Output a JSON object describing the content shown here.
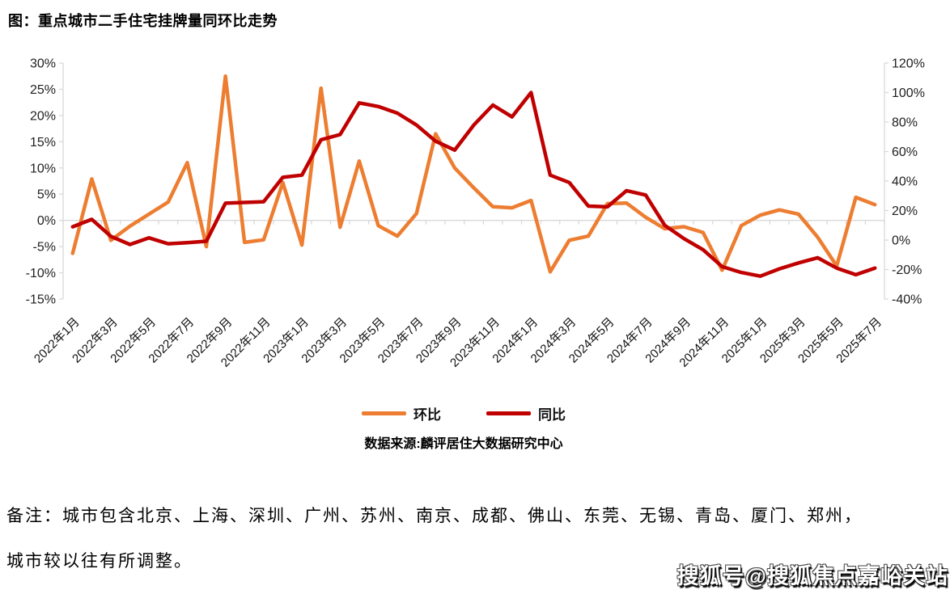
{
  "title": "图：重点城市二手住宅挂牌量同环比走势",
  "chart_data": {
    "type": "line",
    "categories": [
      "2022年1月",
      "2022年2月",
      "2022年3月",
      "2022年4月",
      "2022年5月",
      "2022年6月",
      "2022年7月",
      "2022年8月",
      "2022年9月",
      "2022年10月",
      "2022年11月",
      "2022年12月",
      "2023年1月",
      "2023年2月",
      "2023年3月",
      "2023年4月",
      "2023年5月",
      "2023年6月",
      "2023年7月",
      "2023年8月",
      "2023年9月",
      "2023年10月",
      "2023年11月",
      "2023年12月",
      "2024年1月",
      "2024年2月",
      "2024年3月",
      "2024年4月",
      "2024年5月",
      "2024年6月",
      "2024年7月",
      "2024年8月",
      "2024年9月",
      "2024年10月",
      "2024年11月",
      "2024年12月",
      "2025年1月",
      "2025年2月",
      "2025年3月",
      "2025年4月",
      "2025年5月",
      "2025年6月",
      "2025年7月"
    ],
    "x_label_interval": 2,
    "series": [
      {
        "name": "环比",
        "axis": "left",
        "color": "#ED7D31",
        "values": [
          -6.3,
          7.9,
          -3.8,
          -1.1,
          1.2,
          3.5,
          11.0,
          -5.0,
          27.5,
          -4.2,
          -3.7,
          7.2,
          -4.7,
          25.2,
          -1.3,
          11.3,
          -1.0,
          -3.0,
          1.3,
          16.5,
          10.0,
          6.2,
          2.6,
          2.4,
          3.8,
          -9.8,
          -3.8,
          -3.0,
          3.2,
          3.3,
          0.6,
          -1.6,
          -1.2,
          -2.3,
          -9.5,
          -1.0,
          1.0,
          2.0,
          1.2,
          -3.2,
          -8.7,
          4.4,
          3.0
        ]
      },
      {
        "name": "同比",
        "axis": "right",
        "color": "#C00000",
        "values": [
          9.0,
          14.0,
          2.5,
          -3.0,
          1.5,
          -2.5,
          -1.8,
          -0.8,
          25.0,
          25.5,
          26.0,
          42.5,
          44.0,
          68.0,
          71.5,
          93.0,
          90.5,
          86.0,
          78.0,
          67.0,
          61.0,
          78.0,
          91.5,
          83.5,
          100.0,
          44.0,
          39.0,
          23.0,
          22.5,
          33.5,
          30.5,
          10.0,
          1.0,
          -6.5,
          -18.0,
          -22.0,
          -24.5,
          -19.5,
          -15.5,
          -12.0,
          -19.0,
          -23.5,
          -19.0
        ]
      }
    ],
    "left_axis": {
      "min": -15,
      "max": 30,
      "step": 5,
      "suffix": "%",
      "labels": [
        "30%",
        "25%",
        "20%",
        "15%",
        "10%",
        "5%",
        "0%",
        "-5%",
        "-10%",
        "-15%"
      ]
    },
    "right_axis": {
      "min": -40,
      "max": 120,
      "step": 20,
      "suffix": "%",
      "labels": [
        "120%",
        "100%",
        "80%",
        "60%",
        "40%",
        "20%",
        "0%",
        "-20%",
        "-40%"
      ]
    },
    "grid": "zero-line-only",
    "legend_position": "bottom",
    "axis_color": "#D9D9D9",
    "tick_label_color": "#1f1f1f"
  },
  "legend": {
    "mom_label": "环比",
    "yoy_label": "同比"
  },
  "source": {
    "text": "数据来源:麟评居住大数据研究中心"
  },
  "notes": {
    "line1": "备注：城市包含北京、上海、深圳、广州、苏州、南京、成都、佛山、东莞、无锡、青岛、厦门、郑州，",
    "line2": "城市较以往有所调整。"
  },
  "watermark": {
    "text": "搜狐号@搜狐焦点嘉峪关站"
  }
}
